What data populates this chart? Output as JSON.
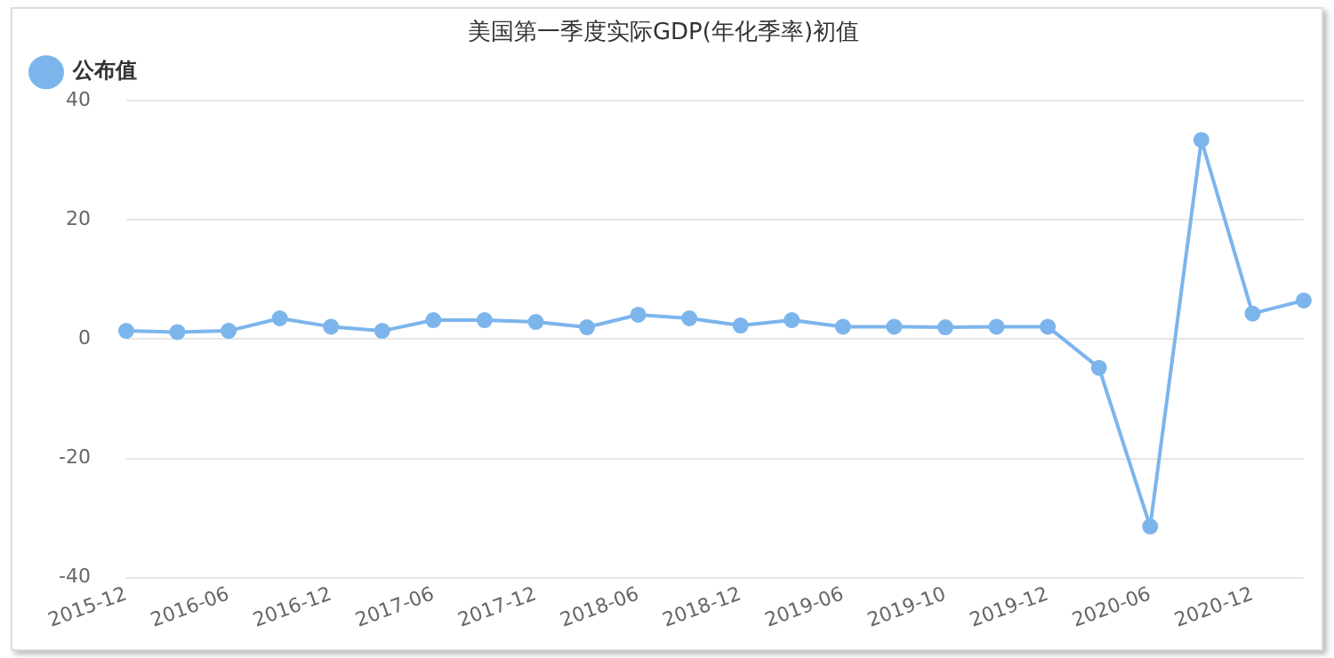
{
  "chart_data": {
    "type": "line",
    "title": "美国第一季度实际GDP(年化季率)初值",
    "categories": [
      "2015-12",
      null,
      "2016-06",
      null,
      "2016-12",
      null,
      "2017-06",
      null,
      "2017-12",
      null,
      "2018-06",
      null,
      "2018-12",
      null,
      "2019-06",
      null,
      "2019-10",
      null,
      "2019-12",
      null,
      "2020-06",
      null,
      "2020-12",
      null
    ],
    "series": [
      {
        "name": "公布值",
        "color": "#7cb5ec",
        "values": [
          1.4,
          1.2,
          1.4,
          3.5,
          2.1,
          1.4,
          3.2,
          3.2,
          2.9,
          2.0,
          4.1,
          3.5,
          2.3,
          3.2,
          2.1,
          2.1,
          2.0,
          2.1,
          2.1,
          -4.8,
          -31.4,
          33.4,
          4.3,
          6.5
        ]
      }
    ],
    "ylim": [
      -40,
      40
    ],
    "yticks": [
      -40,
      -20,
      0,
      20,
      40
    ],
    "grid": "y",
    "legend": "top left",
    "marker": "circle",
    "line_style": "solid"
  }
}
